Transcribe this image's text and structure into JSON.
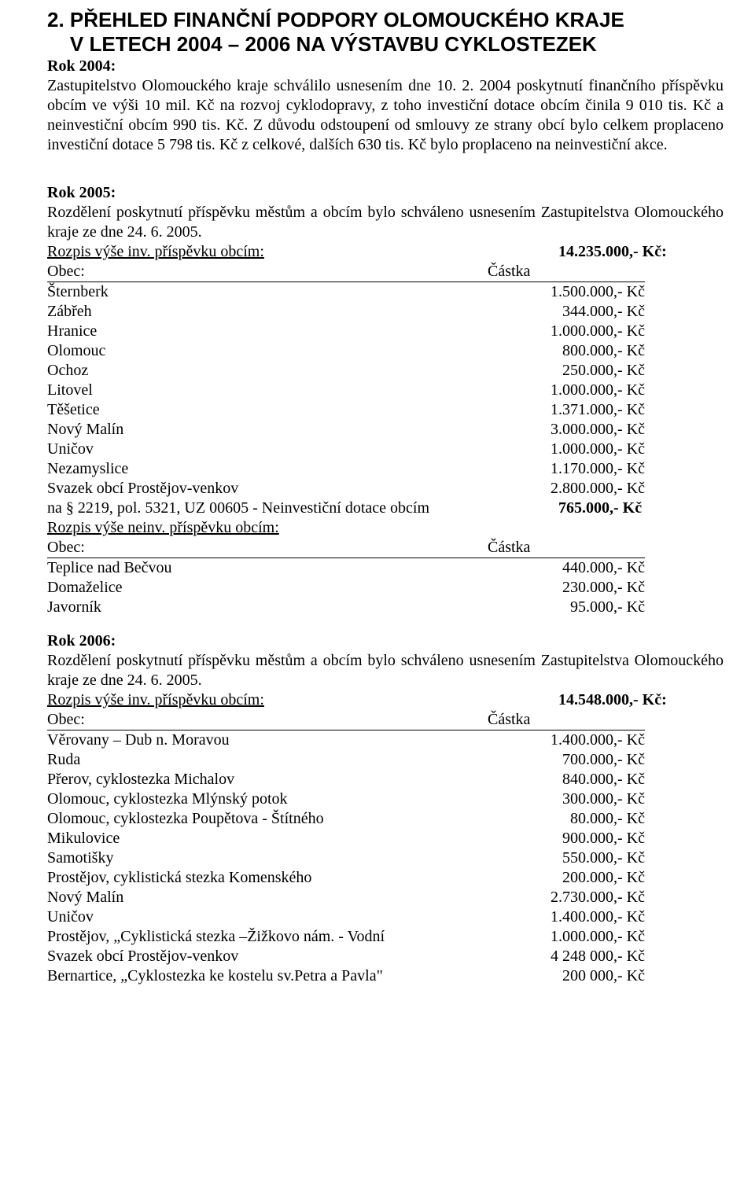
{
  "title_line1": "2. PŘEHLED FINANČNÍ PODPORY OLOMOUCKÉHO KRAJE",
  "title_line2": "V LETECH 2004 – 2006 NA VÝSTAVBU CYKLOSTEZEK",
  "rok2004": {
    "heading": "Rok 2004:",
    "text": "Zastupitelstvo Olomouckého kraje schválilo usnesením dne 10. 2. 2004 poskytnutí finančního příspěvku obcím ve výši 10 mil. Kč na rozvoj cyklodopravy, z toho investiční dotace obcím činila 9 010 tis. Kč a neinvestiční obcím 990 tis. Kč. Z důvodu odstoupení od smlouvy ze strany obcí bylo celkem proplaceno investiční dotace 5 798 tis. Kč z celkové, dalších 630 tis. Kč bylo proplaceno na neinvestiční akce."
  },
  "rok2005": {
    "heading": "Rok 2005:",
    "intro": "Rozdělení poskytnutí příspěvku městům a obcím bylo schváleno usnesením Zastupitelstva Olomouckého kraje ze dne 24. 6. 2005.",
    "rozpis_inv_label": "Rozpis výše inv. příspěvku obcím:",
    "rozpis_inv_total": "14.235.000,- Kč:",
    "header_obec": "Obec:",
    "header_castka": "Částka",
    "inv_rows": [
      {
        "obec": "Šternberk",
        "castka": "1.500.000,- Kč"
      },
      {
        "obec": "Zábřeh",
        "castka": "344.000,- Kč"
      },
      {
        "obec": "Hranice",
        "castka": "1.000.000,- Kč"
      },
      {
        "obec": "Olomouc",
        "castka": "800.000,- Kč"
      },
      {
        "obec": "Ochoz",
        "castka": "250.000,- Kč"
      },
      {
        "obec": "Litovel",
        "castka": "1.000.000,- Kč"
      },
      {
        "obec": "Těšetice",
        "castka": "1.371.000,- Kč"
      },
      {
        "obec": "Nový Malín",
        "castka": "3.000.000,- Kč"
      },
      {
        "obec": "Uničov",
        "castka": "1.000.000,- Kč"
      },
      {
        "obec": "Nezamyslice",
        "castka": "1.170.000,- Kč"
      },
      {
        "obec": "Svazek obcí Prostějov-venkov",
        "castka": "2.800.000,- Kč"
      }
    ],
    "neinv_line_label": "na § 2219, pol. 5321, UZ 00605 - Neinvestiční dotace obcím",
    "neinv_line_total": "765.000,- Kč",
    "rozpis_neinv_label": "Rozpis výše neinv. příspěvku obcím:",
    "neinv_rows": [
      {
        "obec": "Teplice nad Bečvou",
        "castka": "440.000,- Kč"
      },
      {
        "obec": "Domaželice",
        "castka": "230.000,- Kč"
      },
      {
        "obec": "Javorník",
        "castka": "95.000,- Kč"
      }
    ]
  },
  "rok2006": {
    "heading": "Rok 2006:",
    "intro": "Rozdělení poskytnutí příspěvku městům a obcím bylo schváleno usnesením Zastupitelstva Olomouckého kraje ze dne 24. 6. 2005.",
    "rozpis_inv_label": "Rozpis výše inv. příspěvku obcím:",
    "rozpis_inv_total": "14.548.000,- Kč:",
    "header_obec": "Obec:",
    "header_castka": "Částka",
    "inv_rows": [
      {
        "obec": "Věrovany – Dub n. Moravou",
        "castka": "1.400.000,- Kč"
      },
      {
        "obec": "Ruda",
        "castka": "700.000,- Kč"
      },
      {
        "obec": "Přerov, cyklostezka Michalov",
        "castka": "840.000,- Kč"
      },
      {
        "obec": "Olomouc, cyklostezka Mlýnský potok",
        "castka": "300.000,- Kč"
      },
      {
        "obec": "Olomouc, cyklostezka Poupětova - Štítného",
        "castka": "80.000,- Kč"
      },
      {
        "obec": "Mikulovice",
        "castka": "900.000,- Kč"
      },
      {
        "obec": "Samotišky",
        "castka": "550.000,- Kč"
      },
      {
        "obec": "Prostějov, cyklistická stezka Komenského",
        "castka": "200.000,- Kč"
      },
      {
        "obec": "Nový Malín",
        "castka": "2.730.000,- Kč"
      },
      {
        "obec": "Uničov",
        "castka": "1.400.000,- Kč"
      },
      {
        "obec": "Prostějov, „Cyklistická stezka –Žižkovo nám. - Vodní",
        "castka": "1.000.000,- Kč"
      },
      {
        "obec": "Svazek obcí Prostějov-venkov",
        "castka": "4 248 000,- Kč"
      },
      {
        "obec": "Bernartice, „Cyklostezka ke kostelu sv.Petra a Pavla\"",
        "castka": "200 000,- Kč"
      }
    ]
  }
}
